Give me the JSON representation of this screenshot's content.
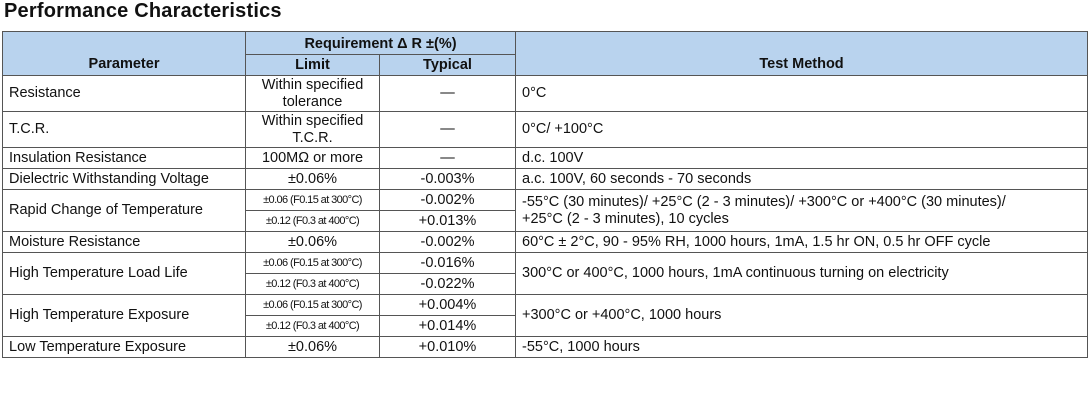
{
  "title": "Performance Characteristics",
  "table": {
    "headers": {
      "parameter": "Parameter",
      "requirement": "Requirement Δ R ±(%)",
      "limit": "Limit",
      "typical": "Typical",
      "test_method": "Test Method"
    },
    "rows": [
      {
        "parameter": "Resistance",
        "limit": [
          "Within specified",
          "tolerance"
        ],
        "typical": "—",
        "test": "0°C"
      },
      {
        "parameter": "T.C.R.",
        "limit": [
          "Within specified",
          "T.C.R."
        ],
        "typical": "—",
        "test": "0°C/ +100°C"
      },
      {
        "parameter": "Insulation Resistance",
        "limit": [
          "100MΩ or more"
        ],
        "typical": "—",
        "test": "d.c. 100V"
      },
      {
        "parameter": "Dielectric Withstanding Voltage",
        "limit": [
          "±0.06%"
        ],
        "typical": "-0.003%",
        "test": "a.c. 100V, 60 seconds - 70 seconds"
      },
      {
        "parameter": "Rapid Change of Temperature",
        "sub": [
          {
            "limit": "±0.06 (F0.15 at 300°C)",
            "typical": "-0.002%"
          },
          {
            "limit": "±0.12 (F0.3 at 400°C)",
            "typical": "+0.013%"
          }
        ],
        "test": [
          "-55°C (30 minutes)/ +25°C (2 - 3 minutes)/ +300°C or +400°C (30 minutes)/",
          "+25°C (2 - 3 minutes), 10 cycles"
        ]
      },
      {
        "parameter": "Moisture Resistance",
        "limit": [
          "±0.06%"
        ],
        "typical": "-0.002%",
        "test": "60°C ± 2°C, 90 - 95% RH, 1000 hours, 1mA, 1.5 hr ON, 0.5 hr OFF cycle"
      },
      {
        "parameter": "High Temperature Load Life",
        "sub": [
          {
            "limit": "±0.06 (F0.15 at 300°C)",
            "typical": "-0.016%"
          },
          {
            "limit": "±0.12 (F0.3 at 400°C)",
            "typical": "-0.022%"
          }
        ],
        "test": [
          "300°C or 400°C, 1000 hours, 1mA continuous turning on electricity"
        ]
      },
      {
        "parameter": "High Temperature Exposure",
        "sub": [
          {
            "limit": "±0.06 (F0.15 at 300°C)",
            "typical": "+0.004%"
          },
          {
            "limit": "±0.12 (F0.3 at 400°C)",
            "typical": "+0.014%"
          }
        ],
        "test": [
          "+300°C or +400°C, 1000 hours"
        ]
      },
      {
        "parameter": "Low Temperature Exposure",
        "limit": [
          "±0.06%"
        ],
        "typical": "+0.010%",
        "test": "-55°C, 1000 hours"
      }
    ]
  }
}
